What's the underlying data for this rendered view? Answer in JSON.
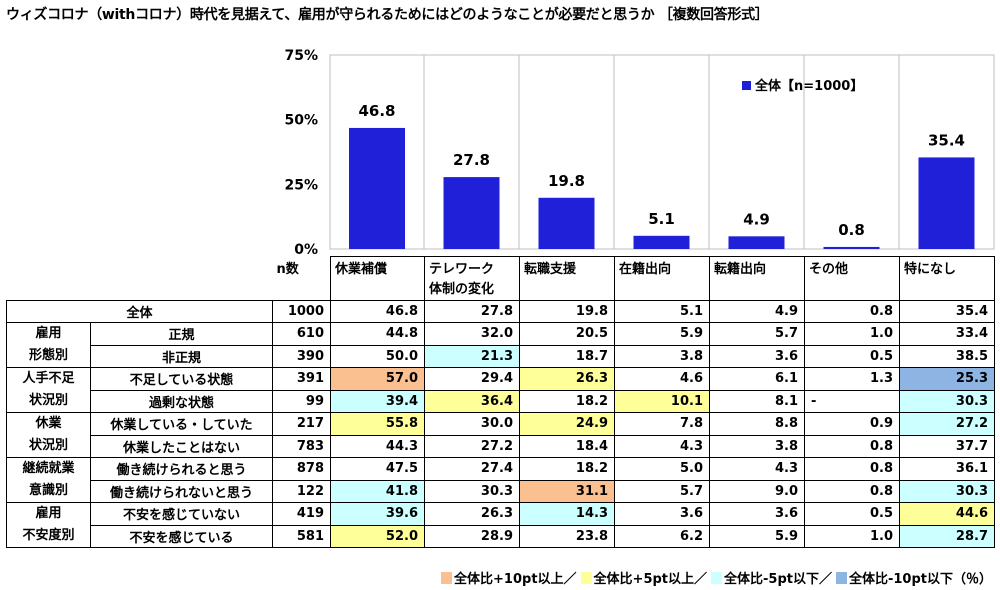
{
  "title": "ウィズコロナ（withコロナ）時代を見据えて、雇用が守られるためにはどのようなことが必要だと思うか ［複数回答形式］",
  "legend_label": "全体【n=1000】",
  "n_header": "n数",
  "chart_data": {
    "type": "bar",
    "categories": [
      "休業補償",
      "テレワーク体制の変化",
      "転職支援",
      "在籍出向",
      "転籍出向",
      "その他",
      "特になし"
    ],
    "category_lines": [
      [
        "休業補償"
      ],
      [
        "テレワーク",
        "体制の変化"
      ],
      [
        "転職支援"
      ],
      [
        "在籍出向"
      ],
      [
        "転籍出向"
      ],
      [
        "その他"
      ],
      [
        "特になし"
      ]
    ],
    "series": [
      {
        "name": "全体【n=1000】",
        "values": [
          46.8,
          27.8,
          19.8,
          5.1,
          4.9,
          0.8,
          35.4
        ]
      }
    ],
    "value_labels": [
      "46.8",
      "27.8",
      "19.8",
      "5.1",
      "4.9",
      "0.8",
      "35.4"
    ],
    "ylim": [
      0,
      75
    ],
    "yticks": [
      0,
      25,
      50,
      75
    ],
    "ytick_labels": [
      "0%",
      "25%",
      "50%",
      "75%"
    ],
    "bar_color": "#2020d8",
    "legend_position": "top-right"
  },
  "table": {
    "total": {
      "label": "全体",
      "n": "1000",
      "values": [
        "46.8",
        "27.8",
        "19.8",
        "5.1",
        "4.9",
        "0.8",
        "35.4"
      ],
      "colors": [
        "",
        "",
        "",
        "",
        "",
        "",
        ""
      ]
    },
    "groups": [
      {
        "label": "雇用形態別",
        "lines": [
          "雇用",
          "形態別"
        ],
        "rows": [
          {
            "label": "正規",
            "n": "610",
            "values": [
              "44.8",
              "32.0",
              "20.5",
              "5.9",
              "5.7",
              "1.0",
              "33.4"
            ],
            "colors": [
              "",
              "",
              "",
              "",
              "",
              "",
              ""
            ]
          },
          {
            "label": "非正規",
            "n": "390",
            "values": [
              "50.0",
              "21.3",
              "18.7",
              "3.8",
              "3.6",
              "0.5",
              "38.5"
            ],
            "colors": [
              "",
              "cyan",
              "",
              "",
              "",
              "",
              ""
            ]
          }
        ]
      },
      {
        "label": "人手不足状況別",
        "lines": [
          "人手不足",
          "状況別"
        ],
        "rows": [
          {
            "label": "不足している状態",
            "n": "391",
            "values": [
              "57.0",
              "29.4",
              "26.3",
              "4.6",
              "6.1",
              "1.3",
              "25.3"
            ],
            "colors": [
              "orange",
              "",
              "yellow",
              "",
              "",
              "",
              "blue"
            ]
          },
          {
            "label": "過剰な状態",
            "n": "99",
            "values": [
              "39.4",
              "36.4",
              "18.2",
              "10.1",
              "8.1",
              "-",
              "30.3"
            ],
            "colors": [
              "cyan",
              "yellow",
              "",
              "yellow",
              "",
              "",
              "cyan"
            ]
          }
        ]
      },
      {
        "label": "休業状況別",
        "lines": [
          "休業",
          "状況別"
        ],
        "rows": [
          {
            "label": "休業している・していた",
            "n": "217",
            "values": [
              "55.8",
              "30.0",
              "24.9",
              "7.8",
              "8.8",
              "0.9",
              "27.2"
            ],
            "colors": [
              "yellow",
              "",
              "yellow",
              "",
              "",
              "",
              "cyan"
            ]
          },
          {
            "label": "休業したことはない",
            "n": "783",
            "values": [
              "44.3",
              "27.2",
              "18.4",
              "4.3",
              "3.8",
              "0.8",
              "37.7"
            ],
            "colors": [
              "",
              "",
              "",
              "",
              "",
              "",
              ""
            ]
          }
        ]
      },
      {
        "label": "継続就業意識別",
        "lines": [
          "継続就業",
          "意識別"
        ],
        "rows": [
          {
            "label": "働き続けられると思う",
            "n": "878",
            "values": [
              "47.5",
              "27.4",
              "18.2",
              "5.0",
              "4.3",
              "0.8",
              "36.1"
            ],
            "colors": [
              "",
              "",
              "",
              "",
              "",
              "",
              ""
            ]
          },
          {
            "label": "働き続けられないと思う",
            "n": "122",
            "values": [
              "41.8",
              "30.3",
              "31.1",
              "5.7",
              "9.0",
              "0.8",
              "30.3"
            ],
            "colors": [
              "cyan",
              "",
              "orange",
              "",
              "",
              "",
              "cyan"
            ]
          }
        ]
      },
      {
        "label": "雇用不安度別",
        "lines": [
          "雇用",
          "不安度別"
        ],
        "rows": [
          {
            "label": "不安を感じていない",
            "n": "419",
            "values": [
              "39.6",
              "26.3",
              "14.3",
              "3.6",
              "3.6",
              "0.5",
              "44.6"
            ],
            "colors": [
              "cyan",
              "",
              "cyan",
              "",
              "",
              "",
              "yellow"
            ]
          },
          {
            "label": "不安を感じている",
            "n": "581",
            "values": [
              "52.0",
              "28.9",
              "23.8",
              "6.2",
              "5.9",
              "1.0",
              "28.7"
            ],
            "colors": [
              "yellow",
              "",
              "",
              "",
              "",
              "",
              "cyan"
            ]
          }
        ]
      }
    ]
  },
  "footer_legend": [
    {
      "label": "全体比+10pt以上／",
      "color": "#fac090"
    },
    {
      "label": "全体比+5pt以上／",
      "color": "#ffff99"
    },
    {
      "label": "全体比-5pt以下／",
      "color": "#ccffff"
    },
    {
      "label": "全体比-10pt以下（％）",
      "color": "#8db4e2"
    }
  ]
}
